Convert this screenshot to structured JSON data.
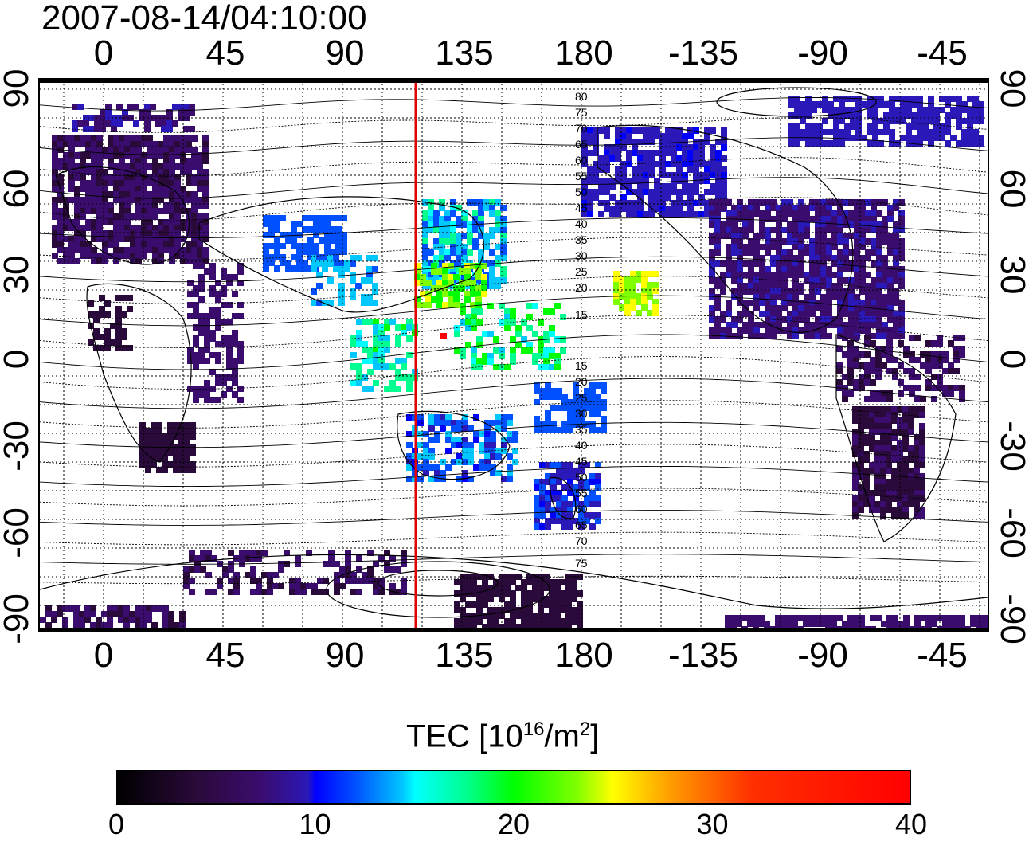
{
  "timestamp": "2007-08-14/04:10:00",
  "map": {
    "lon_ticks": [
      "0",
      "45",
      "90",
      "135",
      "180",
      "-135",
      "-90",
      "-45"
    ],
    "lat_ticks": [
      "90",
      "60",
      "30",
      "0",
      "-30",
      "-60",
      "-90"
    ],
    "contour_labels": [
      "80",
      "75",
      "70",
      "65",
      "60",
      "55",
      "50",
      "45",
      "40",
      "35",
      "30",
      "25",
      "20",
      "15",
      "15",
      "20",
      "25",
      "30",
      "35",
      "40",
      "45",
      "50",
      "55",
      "60",
      "65",
      "70",
      "75"
    ],
    "terminator_color": "#e00000"
  },
  "colorbar": {
    "title_main": "TEC  [10",
    "title_sup1": "16",
    "title_mid": "/m",
    "title_sup2": "2",
    "title_end": "]",
    "ticks": [
      "0",
      "10",
      "20",
      "30",
      "40"
    ],
    "range": [
      0,
      40
    ]
  }
}
